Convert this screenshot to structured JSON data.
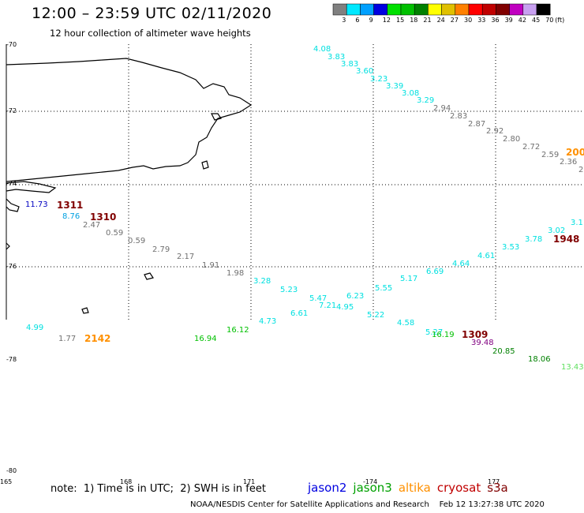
{
  "header": {
    "title": "12:00 – 23:59 UTC 02/11/2020",
    "subtitle": "12 hour collection of altimeter wave heights"
  },
  "color_scale": {
    "unit": "(ft)",
    "steps": [
      {
        "label": "3",
        "color": "#808080"
      },
      {
        "label": "6",
        "color": "#00e8ff"
      },
      {
        "label": "9",
        "color": "#00a0ff"
      },
      {
        "label": "12",
        "color": "#0000e0"
      },
      {
        "label": "15",
        "color": "#00e000"
      },
      {
        "label": "18",
        "color": "#00c000"
      },
      {
        "label": "21",
        "color": "#008000"
      },
      {
        "label": "24",
        "color": "#ffff00"
      },
      {
        "label": "27",
        "color": "#e0c000"
      },
      {
        "label": "30",
        "color": "#ff8000"
      },
      {
        "label": "33",
        "color": "#ff0000"
      },
      {
        "label": "36",
        "color": "#c00000"
      },
      {
        "label": "39",
        "color": "#800000"
      },
      {
        "label": "42",
        "color": "#c000c0"
      },
      {
        "label": "45",
        "color": "#c8a0f0"
      },
      {
        "label": "70",
        "color": "#000000"
      }
    ]
  },
  "axes": {
    "lat_labels": [
      "-70",
      "-72",
      "-74",
      "-76",
      "-78",
      "-80"
    ],
    "lon_labels": [
      "165",
      "168",
      "171",
      "-174",
      "177"
    ]
  },
  "observations": [
    {
      "text": "4.08",
      "color": "#00e0e0"
    },
    {
      "text": "3.83",
      "color": "#00e0e0"
    },
    {
      "text": "3.83",
      "color": "#00e0e0"
    },
    {
      "text": "3.60",
      "color": "#00e0e0"
    },
    {
      "text": "3.23",
      "color": "#00e0e0"
    },
    {
      "text": "3.39",
      "color": "#00e0e0"
    },
    {
      "text": "3.08",
      "color": "#00e0e0"
    },
    {
      "text": "3.29",
      "color": "#00e0e0"
    },
    {
      "text": "2.94",
      "color": "#707070"
    },
    {
      "text": "2.83",
      "color": "#707070"
    },
    {
      "text": "2.87",
      "color": "#707070"
    },
    {
      "text": "2.92",
      "color": "#707070"
    },
    {
      "text": "2.80",
      "color": "#707070"
    },
    {
      "text": "2.72",
      "color": "#707070"
    },
    {
      "text": "2.59",
      "color": "#707070"
    },
    {
      "text": "2.36",
      "color": "#707070"
    },
    {
      "text": "2",
      "color": "#707070"
    },
    {
      "text": "200",
      "color": "#ff9000"
    },
    {
      "text": "11.73",
      "color": "#0000c0"
    },
    {
      "text": "1311",
      "color": "#800000"
    },
    {
      "text": "8.76",
      "color": "#00a0e0"
    },
    {
      "text": "1310",
      "color": "#800000"
    },
    {
      "text": "2.47",
      "color": "#707070"
    },
    {
      "text": "0.59",
      "color": "#707070"
    },
    {
      "text": "0.59",
      "color": "#707070"
    },
    {
      "text": "2.79",
      "color": "#707070"
    },
    {
      "text": "2.17",
      "color": "#707070"
    },
    {
      "text": "1.91",
      "color": "#707070"
    },
    {
      "text": "1.98",
      "color": "#707070"
    },
    {
      "text": "3.28",
      "color": "#00e0e0"
    },
    {
      "text": "5.23",
      "color": "#00e0e0"
    },
    {
      "text": "5.47",
      "color": "#00e0e0"
    },
    {
      "text": "7.21",
      "color": "#00e0e0"
    },
    {
      "text": "4.95",
      "color": "#00e0e0"
    },
    {
      "text": "6.23",
      "color": "#00e0e0"
    },
    {
      "text": "5.55",
      "color": "#00e0e0"
    },
    {
      "text": "5.22",
      "color": "#00e0e0"
    },
    {
      "text": "5.17",
      "color": "#00e0e0"
    },
    {
      "text": "6.69",
      "color": "#00e0e0"
    },
    {
      "text": "4.64",
      "color": "#00e0e0"
    },
    {
      "text": "4.61",
      "color": "#00e0e0"
    },
    {
      "text": "3.53",
      "color": "#00e0e0"
    },
    {
      "text": "3.78",
      "color": "#00e0e0"
    },
    {
      "text": "3.02",
      "color": "#00e0e0"
    },
    {
      "text": "3.1",
      "color": "#00e0e0"
    },
    {
      "text": "1948",
      "color": "#800000"
    },
    {
      "text": "6.61",
      "color": "#00e0e0"
    },
    {
      "text": "4.73",
      "color": "#00e0e0"
    },
    {
      "text": "4.58",
      "color": "#00e0e0"
    },
    {
      "text": "4.99",
      "color": "#00e0e0"
    },
    {
      "text": "1.77",
      "color": "#707070"
    },
    {
      "text": "2142",
      "color": "#ff9000"
    },
    {
      "text": "16.94",
      "color": "#00c000"
    },
    {
      "text": "16.12",
      "color": "#00c000"
    },
    {
      "text": "5.27",
      "color": "#00e0e0"
    },
    {
      "text": "16.19",
      "color": "#00c000"
    },
    {
      "text": "1309",
      "color": "#800000"
    },
    {
      "text": "39.48",
      "color": "#800080"
    },
    {
      "text": "20.85",
      "color": "#008000"
    },
    {
      "text": "18.06",
      "color": "#008000"
    },
    {
      "text": "13.43",
      "color": "#60e060"
    }
  ],
  "footer": {
    "note": "note:  1) Time is in UTC;  2) SWH is in feet",
    "satellites": [
      {
        "name": "jason2",
        "color": "#0000e0"
      },
      {
        "name": "jason3",
        "color": "#00a000"
      },
      {
        "name": "altika",
        "color": "#ff9000"
      },
      {
        "name": "cryosat",
        "color": "#c00000"
      },
      {
        "name": "s3a",
        "color": "#800000"
      }
    ],
    "credit": "NOAA/NESDIS Center for Satellite Applications and Research    Feb 12 13:27:38 UTC 2020"
  }
}
